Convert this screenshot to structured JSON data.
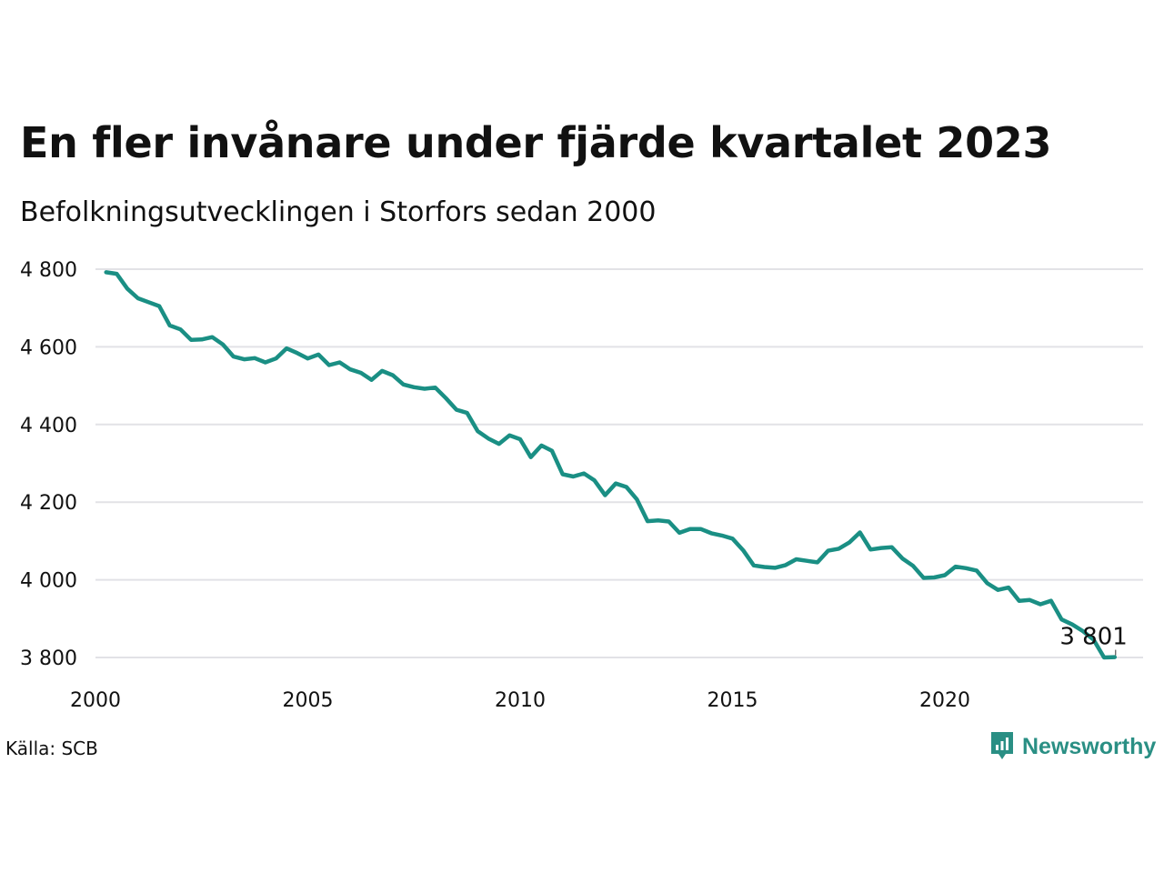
{
  "title": "En fler invånare under fjärde kvartalet 2023",
  "subtitle": "Befolkningsutvecklingen i Storfors sedan 2000",
  "source": "Källa: SCB",
  "brand": {
    "name": "Newsworthy",
    "icon": "newsworthy-logo-icon",
    "color": "#2a8f84"
  },
  "colors": {
    "line": "#1a8f84",
    "grid": "#e2e2e6",
    "text": "#111111"
  },
  "chart_data": {
    "type": "line",
    "title": "En fler invånare under fjärde kvartalet 2023",
    "subtitle": "Befolkningsutvecklingen i Storfors sedan 2000",
    "xlabel": "",
    "ylabel": "",
    "xlim": [
      2000,
      2024.7
    ],
    "ylim": [
      3800,
      4800
    ],
    "grid": true,
    "x_ticks": [
      2000,
      2005,
      2010,
      2015,
      2020
    ],
    "x_tick_labels": [
      "2000",
      "2005",
      "2010",
      "2015",
      "2020"
    ],
    "y_ticks": [
      3800,
      4000,
      4200,
      4400,
      4600,
      4800
    ],
    "y_tick_labels": [
      "3 800",
      "4 000",
      "4 200",
      "4 400",
      "4 600",
      "4 800"
    ],
    "end_label": "3 801",
    "series": [
      {
        "x": [
          2000.25,
          2000.5,
          2000.75,
          2001.0,
          2001.25,
          2001.5,
          2001.75,
          2002.0,
          2002.25,
          2002.5,
          2002.75,
          2003.0,
          2003.25,
          2003.5,
          2003.75,
          2004.0,
          2004.25,
          2004.5,
          2004.75,
          2005.0,
          2005.25,
          2005.5,
          2005.75,
          2006.0,
          2006.25,
          2006.5,
          2006.75,
          2007.0,
          2007.25,
          2007.5,
          2007.75,
          2008.0,
          2008.25,
          2008.5,
          2008.75,
          2009.0,
          2009.25,
          2009.5,
          2009.75,
          2010.0,
          2010.25,
          2010.5,
          2010.75,
          2011.0,
          2011.25,
          2011.5,
          2011.75,
          2012.0,
          2012.25,
          2012.5,
          2012.75,
          2013.0,
          2013.25,
          2013.5,
          2013.75,
          2014.0,
          2014.25,
          2014.5,
          2014.75,
          2015.0,
          2015.25,
          2015.5,
          2015.75,
          2016.0,
          2016.25,
          2016.5,
          2016.75,
          2017.0,
          2017.25,
          2017.5,
          2017.75,
          2018.0,
          2018.25,
          2018.5,
          2018.75,
          2019.0,
          2019.25,
          2019.5,
          2019.75,
          2020.0,
          2020.25,
          2020.5,
          2020.75,
          2021.0,
          2021.25,
          2021.5,
          2021.75,
          2022.0,
          2022.25,
          2022.5,
          2022.75,
          2023.0,
          2023.25,
          2023.5,
          2023.75,
          2024.0
        ],
        "values": [
          4792,
          4788,
          4750,
          4725,
          4715,
          4705,
          4655,
          4645,
          4618,
          4619,
          4625,
          4606,
          4575,
          4568,
          4571,
          4560,
          4570,
          4596,
          4584,
          4570,
          4580,
          4553,
          4560,
          4542,
          4533,
          4515,
          4538,
          4527,
          4503,
          4496,
          4492,
          4495,
          4468,
          4438,
          4430,
          4383,
          4364,
          4350,
          4372,
          4362,
          4316,
          4346,
          4332,
          4272,
          4266,
          4274,
          4256,
          4218,
          4248,
          4239,
          4207,
          4151,
          4153,
          4150,
          4121,
          4131,
          4131,
          4120,
          4114,
          4106,
          4076,
          4037,
          4033,
          4031,
          4038,
          4053,
          4049,
          4045,
          4075,
          4080,
          4096,
          4122,
          4078,
          4082,
          4084,
          4055,
          4036,
          4005,
          4006,
          4012,
          4034,
          4030,
          4024,
          3991,
          3974,
          3980,
          3946,
          3948,
          3937,
          3946,
          3898,
          3885,
          3868,
          3846,
          3800,
          3801
        ]
      }
    ]
  }
}
